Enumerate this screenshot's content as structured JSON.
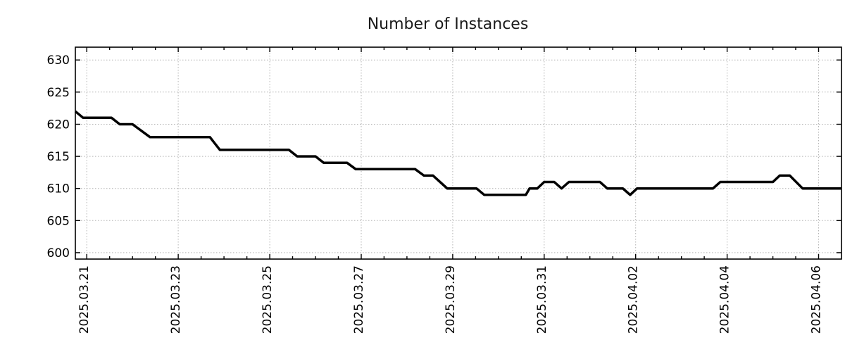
{
  "figure": {
    "background": "#ffffff"
  },
  "chart_data": {
    "type": "line",
    "title": "Number of Instances",
    "xlabel": "",
    "ylabel": "",
    "legend": "none",
    "grid": {
      "visible": true,
      "style": "dotted",
      "color": "#b3b3b3"
    },
    "x_axis": {
      "kind": "date",
      "tick_labels": [
        "2025.03.21",
        "2025.03.23",
        "2025.03.25",
        "2025.03.27",
        "2025.03.29",
        "2025.03.31",
        "2025.04.02",
        "2025.04.04",
        "2025.04.06"
      ],
      "tick_positions_days": [
        0,
        2,
        4,
        6,
        8,
        10,
        12,
        14,
        16
      ],
      "minor_tick_interval_days": 0.5,
      "range_days": [
        -0.25,
        16.5
      ],
      "labels_rotated_degrees": -90
    },
    "y_axis": {
      "ticks": [
        600,
        605,
        610,
        615,
        620,
        625,
        630
      ],
      "range": [
        599,
        632
      ]
    },
    "series": [
      {
        "name": "Number of Instances",
        "color": "#000000",
        "points": [
          [
            -0.25,
            622
          ],
          [
            -0.08,
            621
          ],
          [
            0.54,
            621
          ],
          [
            0.72,
            620
          ],
          [
            1.0,
            620
          ],
          [
            1.38,
            618
          ],
          [
            2.69,
            618
          ],
          [
            2.91,
            616
          ],
          [
            4.42,
            616
          ],
          [
            4.6,
            615
          ],
          [
            5.0,
            615
          ],
          [
            5.18,
            614
          ],
          [
            5.69,
            614
          ],
          [
            5.88,
            613
          ],
          [
            7.18,
            613
          ],
          [
            7.37,
            612
          ],
          [
            7.57,
            612
          ],
          [
            7.88,
            610
          ],
          [
            8.52,
            610
          ],
          [
            8.69,
            609
          ],
          [
            9.6,
            609
          ],
          [
            9.68,
            610
          ],
          [
            9.85,
            610
          ],
          [
            10.0,
            611
          ],
          [
            10.22,
            611
          ],
          [
            10.38,
            610
          ],
          [
            10.54,
            611
          ],
          [
            11.22,
            611
          ],
          [
            11.38,
            610
          ],
          [
            11.72,
            610
          ],
          [
            11.88,
            609
          ],
          [
            12.03,
            610
          ],
          [
            13.69,
            610
          ],
          [
            13.85,
            611
          ],
          [
            15.0,
            611
          ],
          [
            15.15,
            612
          ],
          [
            15.37,
            612
          ],
          [
            15.65,
            610
          ],
          [
            16.5,
            610
          ]
        ]
      }
    ]
  }
}
